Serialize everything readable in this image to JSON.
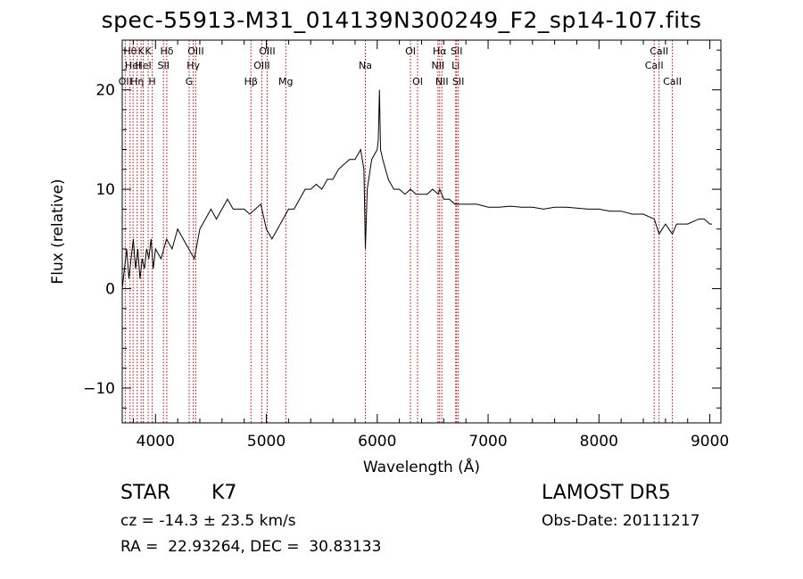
{
  "chart_data": {
    "type": "line",
    "title": "spec-55913-M31_014139N300249_F2_sp14-107.fits",
    "xlabel": "Wavelength (Å)",
    "ylabel": "Flux (relative)",
    "xlim": [
      3700,
      9100
    ],
    "ylim": [
      -13.5,
      25
    ],
    "xticks": [
      4000,
      5000,
      6000,
      7000,
      8000,
      9000
    ],
    "yticks": [
      -10,
      0,
      10,
      20
    ],
    "grid": false,
    "line_color": "#000000",
    "marker_line_color": "#cc0000",
    "series": [
      {
        "x": [
          3700,
          3720,
          3740,
          3760,
          3780,
          3800,
          3820,
          3840,
          3860,
          3880,
          3900,
          3920,
          3940,
          3960,
          3980,
          4000,
          4050,
          4100,
          4150,
          4200,
          4250,
          4300,
          4350,
          4400,
          4450,
          4500,
          4550,
          4600,
          4650,
          4700,
          4750,
          4800,
          4850,
          4900,
          4950,
          5000,
          5050,
          5100,
          5150,
          5200,
          5250,
          5300,
          5350,
          5400,
          5450,
          5500,
          5550,
          5600,
          5650,
          5700,
          5750,
          5800,
          5850,
          5880,
          5893,
          5910,
          5950,
          6000,
          6010,
          6020,
          6030,
          6050,
          6100,
          6150,
          6200,
          6250,
          6300,
          6350,
          6400,
          6450,
          6500,
          6550,
          6563,
          6600,
          6650,
          6700,
          6750,
          6800,
          6900,
          7000,
          7100,
          7200,
          7300,
          7400,
          7500,
          7600,
          7700,
          7800,
          7900,
          8000,
          8100,
          8200,
          8300,
          8400,
          8500,
          8542,
          8600,
          8662,
          8700,
          8800,
          8900,
          8950,
          9000,
          9020
        ],
        "y": [
          0,
          2,
          4,
          1,
          3,
          5,
          2,
          4,
          1,
          3,
          2,
          4,
          3,
          5,
          2,
          4,
          3,
          5,
          4,
          6,
          5,
          4,
          3,
          6,
          7,
          8,
          7,
          8,
          9,
          8,
          8,
          8,
          7.5,
          8,
          8.5,
          6,
          5,
          6,
          7,
          8,
          8,
          9,
          10,
          10,
          10.5,
          10,
          11,
          11,
          12,
          12.5,
          13,
          13,
          14,
          12,
          4,
          10,
          13,
          14,
          15,
          20,
          14,
          13,
          11,
          10,
          10,
          9.5,
          10,
          9.5,
          9.5,
          9.5,
          10,
          9.5,
          10,
          9,
          9,
          8.5,
          8.5,
          8.5,
          8.5,
          8.2,
          8.2,
          8.3,
          8.2,
          8.2,
          8,
          8.2,
          8.2,
          8.1,
          8,
          8,
          7.8,
          7.8,
          7.5,
          7.5,
          7,
          5.5,
          6.5,
          5.5,
          6.5,
          6.5,
          7,
          7,
          6.5,
          6.5
        ]
      }
    ],
    "line_markers": [
      {
        "wl": 3727,
        "label": "OII",
        "row": 2
      },
      {
        "wl": 3771,
        "label": "Hθ",
        "row": 0
      },
      {
        "wl": 3798,
        "label": "HeI",
        "row": 1
      },
      {
        "wl": 3835,
        "label": "Hη",
        "row": 2
      },
      {
        "wl": 3870,
        "label": "K",
        "row": 0
      },
      {
        "wl": 3890,
        "label": "HeI",
        "row": 1
      },
      {
        "wl": 3934,
        "label": "K",
        "row": 0
      },
      {
        "wl": 3970,
        "label": "H",
        "row": 2
      },
      {
        "wl": 4072,
        "label": "SII",
        "row": 1
      },
      {
        "wl": 4102,
        "label": "Hδ",
        "row": 0
      },
      {
        "wl": 4304,
        "label": "G",
        "row": 2
      },
      {
        "wl": 4341,
        "label": "Hγ",
        "row": 1
      },
      {
        "wl": 4363,
        "label": "OIII",
        "row": 0
      },
      {
        "wl": 4861,
        "label": "Hβ",
        "row": 2
      },
      {
        "wl": 4959,
        "label": "OIII",
        "row": 1
      },
      {
        "wl": 5007,
        "label": "OIII",
        "row": 0
      },
      {
        "wl": 5175,
        "label": "Mg",
        "row": 2
      },
      {
        "wl": 5893,
        "label": "Na",
        "row": 1
      },
      {
        "wl": 6300,
        "label": "OI",
        "row": 0
      },
      {
        "wl": 6364,
        "label": "OI",
        "row": 2
      },
      {
        "wl": 6548,
        "label": "NII",
        "row": 1
      },
      {
        "wl": 6563,
        "label": "Hα",
        "row": 0
      },
      {
        "wl": 6583,
        "label": "NII",
        "row": 2
      },
      {
        "wl": 6708,
        "label": "Li",
        "row": 1
      },
      {
        "wl": 6716,
        "label": "SII",
        "row": 0
      },
      {
        "wl": 6731,
        "label": "SII",
        "row": 2
      },
      {
        "wl": 8498,
        "label": "CaII",
        "row": 1
      },
      {
        "wl": 8542,
        "label": "CaII",
        "row": 0
      },
      {
        "wl": 8662,
        "label": "CaII",
        "row": 2
      }
    ]
  },
  "info": {
    "class": "STAR",
    "subclass": "K7",
    "survey": "LAMOST DR5",
    "cz": "cz = -14.3 ± 23.5 km/s",
    "obs_date": "Obs-Date: 20111217",
    "radec": "RA =  22.93264, DEC =  30.83133"
  }
}
